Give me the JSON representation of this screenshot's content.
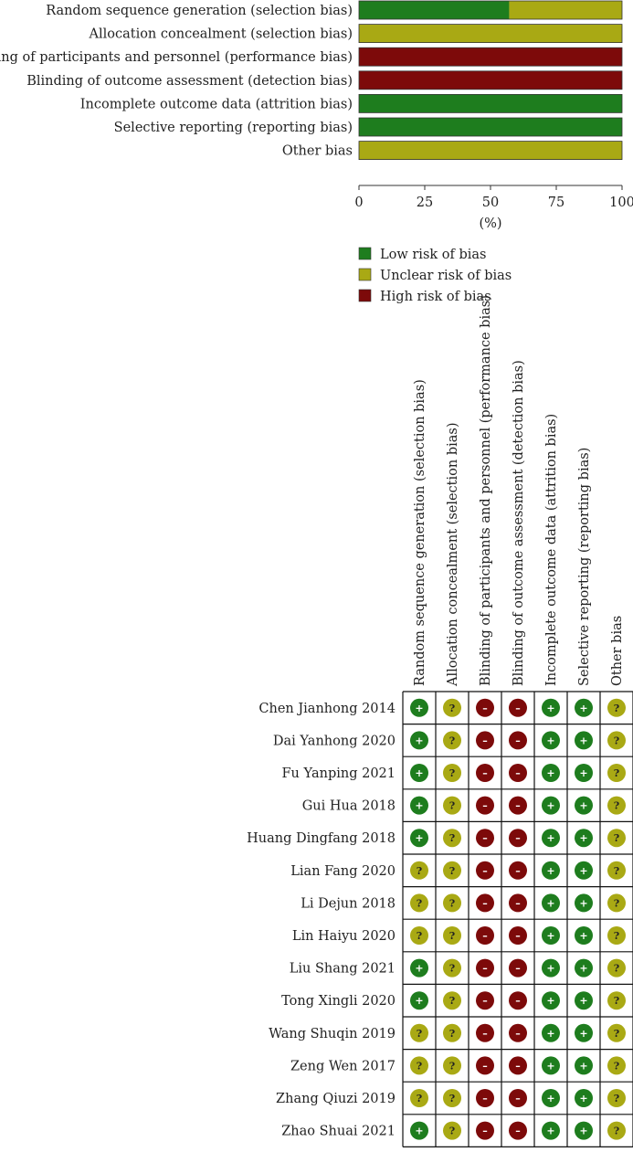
{
  "colors": {
    "low": "#1e7d1e",
    "unclear": "#a9a914",
    "high": "#7d0a0a"
  },
  "chart_data": [
    {
      "type": "bar",
      "orientation": "horizontal",
      "stacked": true,
      "categories": [
        "Random sequence generation (selection bias)",
        "Allocation concealment (selection bias)",
        "Blinding of participants and personnel (performance bias)",
        "Blinding of outcome assessment (detection bias)",
        "Incomplete outcome data (attrition bias)",
        "Selective reporting (reporting bias)",
        "Other bias"
      ],
      "series": [
        {
          "name": "Low risk of bias",
          "color": "#1e7d1e",
          "values": [
            57.1,
            0,
            0,
            0,
            100,
            100,
            0
          ]
        },
        {
          "name": "Unclear risk of bias",
          "color": "#a9a914",
          "values": [
            42.9,
            100,
            0,
            0,
            0,
            0,
            100
          ]
        },
        {
          "name": "High risk of bias",
          "color": "#7d0a0a",
          "values": [
            0,
            0,
            100,
            100,
            0,
            0,
            0
          ]
        }
      ],
      "xlabel": "(%)",
      "xlim": [
        0,
        100
      ],
      "xticks": [
        "0",
        "25",
        "50",
        "75",
        "100"
      ],
      "legend": {
        "position": "bottom",
        "items": [
          "Low risk of bias",
          "Unclear risk of bias",
          "High risk of bias"
        ]
      }
    },
    {
      "type": "table",
      "columns": [
        "Random sequence generation (selection bias)",
        "Allocation concealment (selection bias)",
        "Blinding of participants and personnel (performance bias)",
        "Blinding of outcome assessment (detection bias)",
        "Incomplete outcome data (attrition bias)",
        "Selective reporting (reporting bias)",
        "Other bias"
      ],
      "rows": [
        {
          "study": "Chen Jianhong 2014",
          "ratings": [
            "+",
            "?",
            "-",
            "-",
            "+",
            "+",
            "?"
          ]
        },
        {
          "study": "Dai Yanhong 2020",
          "ratings": [
            "+",
            "?",
            "-",
            "-",
            "+",
            "+",
            "?"
          ]
        },
        {
          "study": "Fu Yanping 2021",
          "ratings": [
            "+",
            "?",
            "-",
            "-",
            "+",
            "+",
            "?"
          ]
        },
        {
          "study": "Gui Hua 2018",
          "ratings": [
            "+",
            "?",
            "-",
            "-",
            "+",
            "+",
            "?"
          ]
        },
        {
          "study": "Huang Dingfang 2018",
          "ratings": [
            "+",
            "?",
            "-",
            "-",
            "+",
            "+",
            "?"
          ]
        },
        {
          "study": "Lian Fang 2020",
          "ratings": [
            "?",
            "?",
            "-",
            "-",
            "+",
            "+",
            "?"
          ]
        },
        {
          "study": "Li Dejun 2018",
          "ratings": [
            "?",
            "?",
            "-",
            "-",
            "+",
            "+",
            "?"
          ]
        },
        {
          "study": "Lin Haiyu 2020",
          "ratings": [
            "?",
            "?",
            "-",
            "-",
            "+",
            "+",
            "?"
          ]
        },
        {
          "study": "Liu Shang 2021",
          "ratings": [
            "+",
            "?",
            "-",
            "-",
            "+",
            "+",
            "?"
          ]
        },
        {
          "study": "Tong Xingli 2020",
          "ratings": [
            "+",
            "?",
            "-",
            "-",
            "+",
            "+",
            "?"
          ]
        },
        {
          "study": "Wang Shuqin 2019",
          "ratings": [
            "?",
            "?",
            "-",
            "-",
            "+",
            "+",
            "?"
          ]
        },
        {
          "study": "Zeng Wen 2017",
          "ratings": [
            "?",
            "?",
            "-",
            "-",
            "+",
            "+",
            "?"
          ]
        },
        {
          "study": "Zhang Qiuzi 2019",
          "ratings": [
            "?",
            "?",
            "-",
            "-",
            "+",
            "+",
            "?"
          ]
        },
        {
          "study": "Zhao Shuai 2021",
          "ratings": [
            "+",
            "?",
            "-",
            "-",
            "+",
            "+",
            "?"
          ]
        }
      ]
    }
  ]
}
